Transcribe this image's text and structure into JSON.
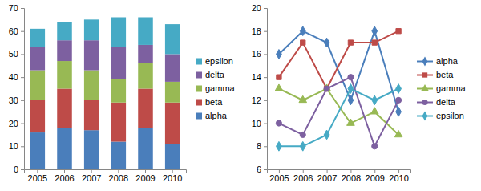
{
  "chart_data": [
    {
      "type": "bar",
      "stacked": true,
      "legend": "right",
      "grid": false,
      "categories": [
        "2005",
        "2006",
        "2007",
        "2008",
        "2009",
        "2010"
      ],
      "ylim": [
        0,
        70
      ],
      "yticks": [
        0,
        10,
        20,
        30,
        40,
        50,
        60,
        70
      ],
      "series": [
        {
          "name": "alpha",
          "color": "#4a7ebb",
          "values": [
            16,
            18,
            17,
            12,
            18,
            11
          ]
        },
        {
          "name": "beta",
          "color": "#be4b48",
          "values": [
            14,
            17,
            13,
            17,
            17,
            18
          ]
        },
        {
          "name": "gamma",
          "color": "#98b954",
          "values": [
            13,
            12,
            13,
            10,
            11,
            9
          ]
        },
        {
          "name": "delta",
          "color": "#7d60a0",
          "values": [
            10,
            9,
            13,
            14,
            8,
            12
          ]
        },
        {
          "name": "epsilon",
          "color": "#46aac5",
          "values": [
            8,
            8,
            9,
            13,
            12,
            13
          ]
        }
      ]
    },
    {
      "type": "line",
      "legend": "right",
      "grid": false,
      "categories": [
        "2005",
        "2006",
        "2007",
        "2008",
        "2009",
        "2010"
      ],
      "ylim": [
        6,
        20
      ],
      "yticks": [
        6,
        8,
        10,
        12,
        14,
        16,
        18,
        20
      ],
      "series": [
        {
          "name": "alpha",
          "color": "#4a7ebb",
          "marker": "diamond",
          "values": [
            16,
            18,
            17,
            12,
            18,
            11
          ]
        },
        {
          "name": "beta",
          "color": "#be4b48",
          "marker": "square",
          "values": [
            14,
            17,
            13,
            17,
            17,
            18
          ]
        },
        {
          "name": "gamma",
          "color": "#98b954",
          "marker": "triangle",
          "values": [
            13,
            12,
            13,
            10,
            11,
            9
          ]
        },
        {
          "name": "delta",
          "color": "#7d60a0",
          "marker": "circle",
          "values": [
            10,
            9,
            13,
            14,
            8,
            12
          ]
        },
        {
          "name": "epsilon",
          "color": "#46aac5",
          "marker": "diamond",
          "values": [
            8,
            8,
            9,
            13,
            12,
            13
          ]
        }
      ]
    }
  ]
}
